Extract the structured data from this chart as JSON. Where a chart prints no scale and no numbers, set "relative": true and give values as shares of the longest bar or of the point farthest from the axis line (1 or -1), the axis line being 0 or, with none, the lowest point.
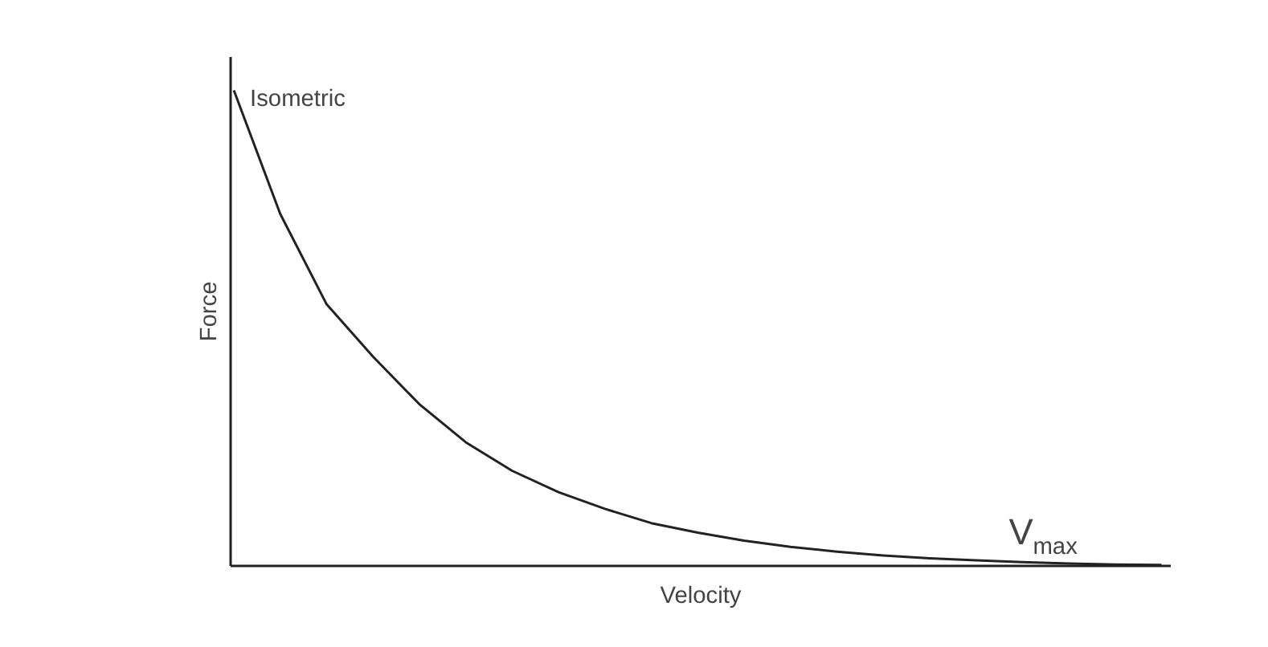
{
  "chart_data": {
    "type": "line",
    "relative": true,
    "xlabel": "Velocity",
    "ylabel": "Force",
    "categories": [
      null,
      null,
      null,
      null,
      null,
      null,
      null,
      null,
      null,
      null,
      null,
      null,
      null,
      null,
      null,
      null,
      null,
      null,
      null,
      null,
      null
    ],
    "series": [
      {
        "color": "#222222",
        "values": [
          1,
          0.74,
          0.55,
          0.44,
          0.34,
          0.26,
          0.2,
          0.155,
          0.12,
          0.09,
          0.07,
          0.053,
          0.04,
          0.03,
          0.022,
          0.016,
          0.012,
          0.008,
          0.005,
          0.003,
          0.002
        ]
      }
    ],
    "annotations": [
      "Isometric",
      "V$_{max}$"
    ],
    "grid": false,
    "marker": "none",
    "line_style": "solid"
  }
}
